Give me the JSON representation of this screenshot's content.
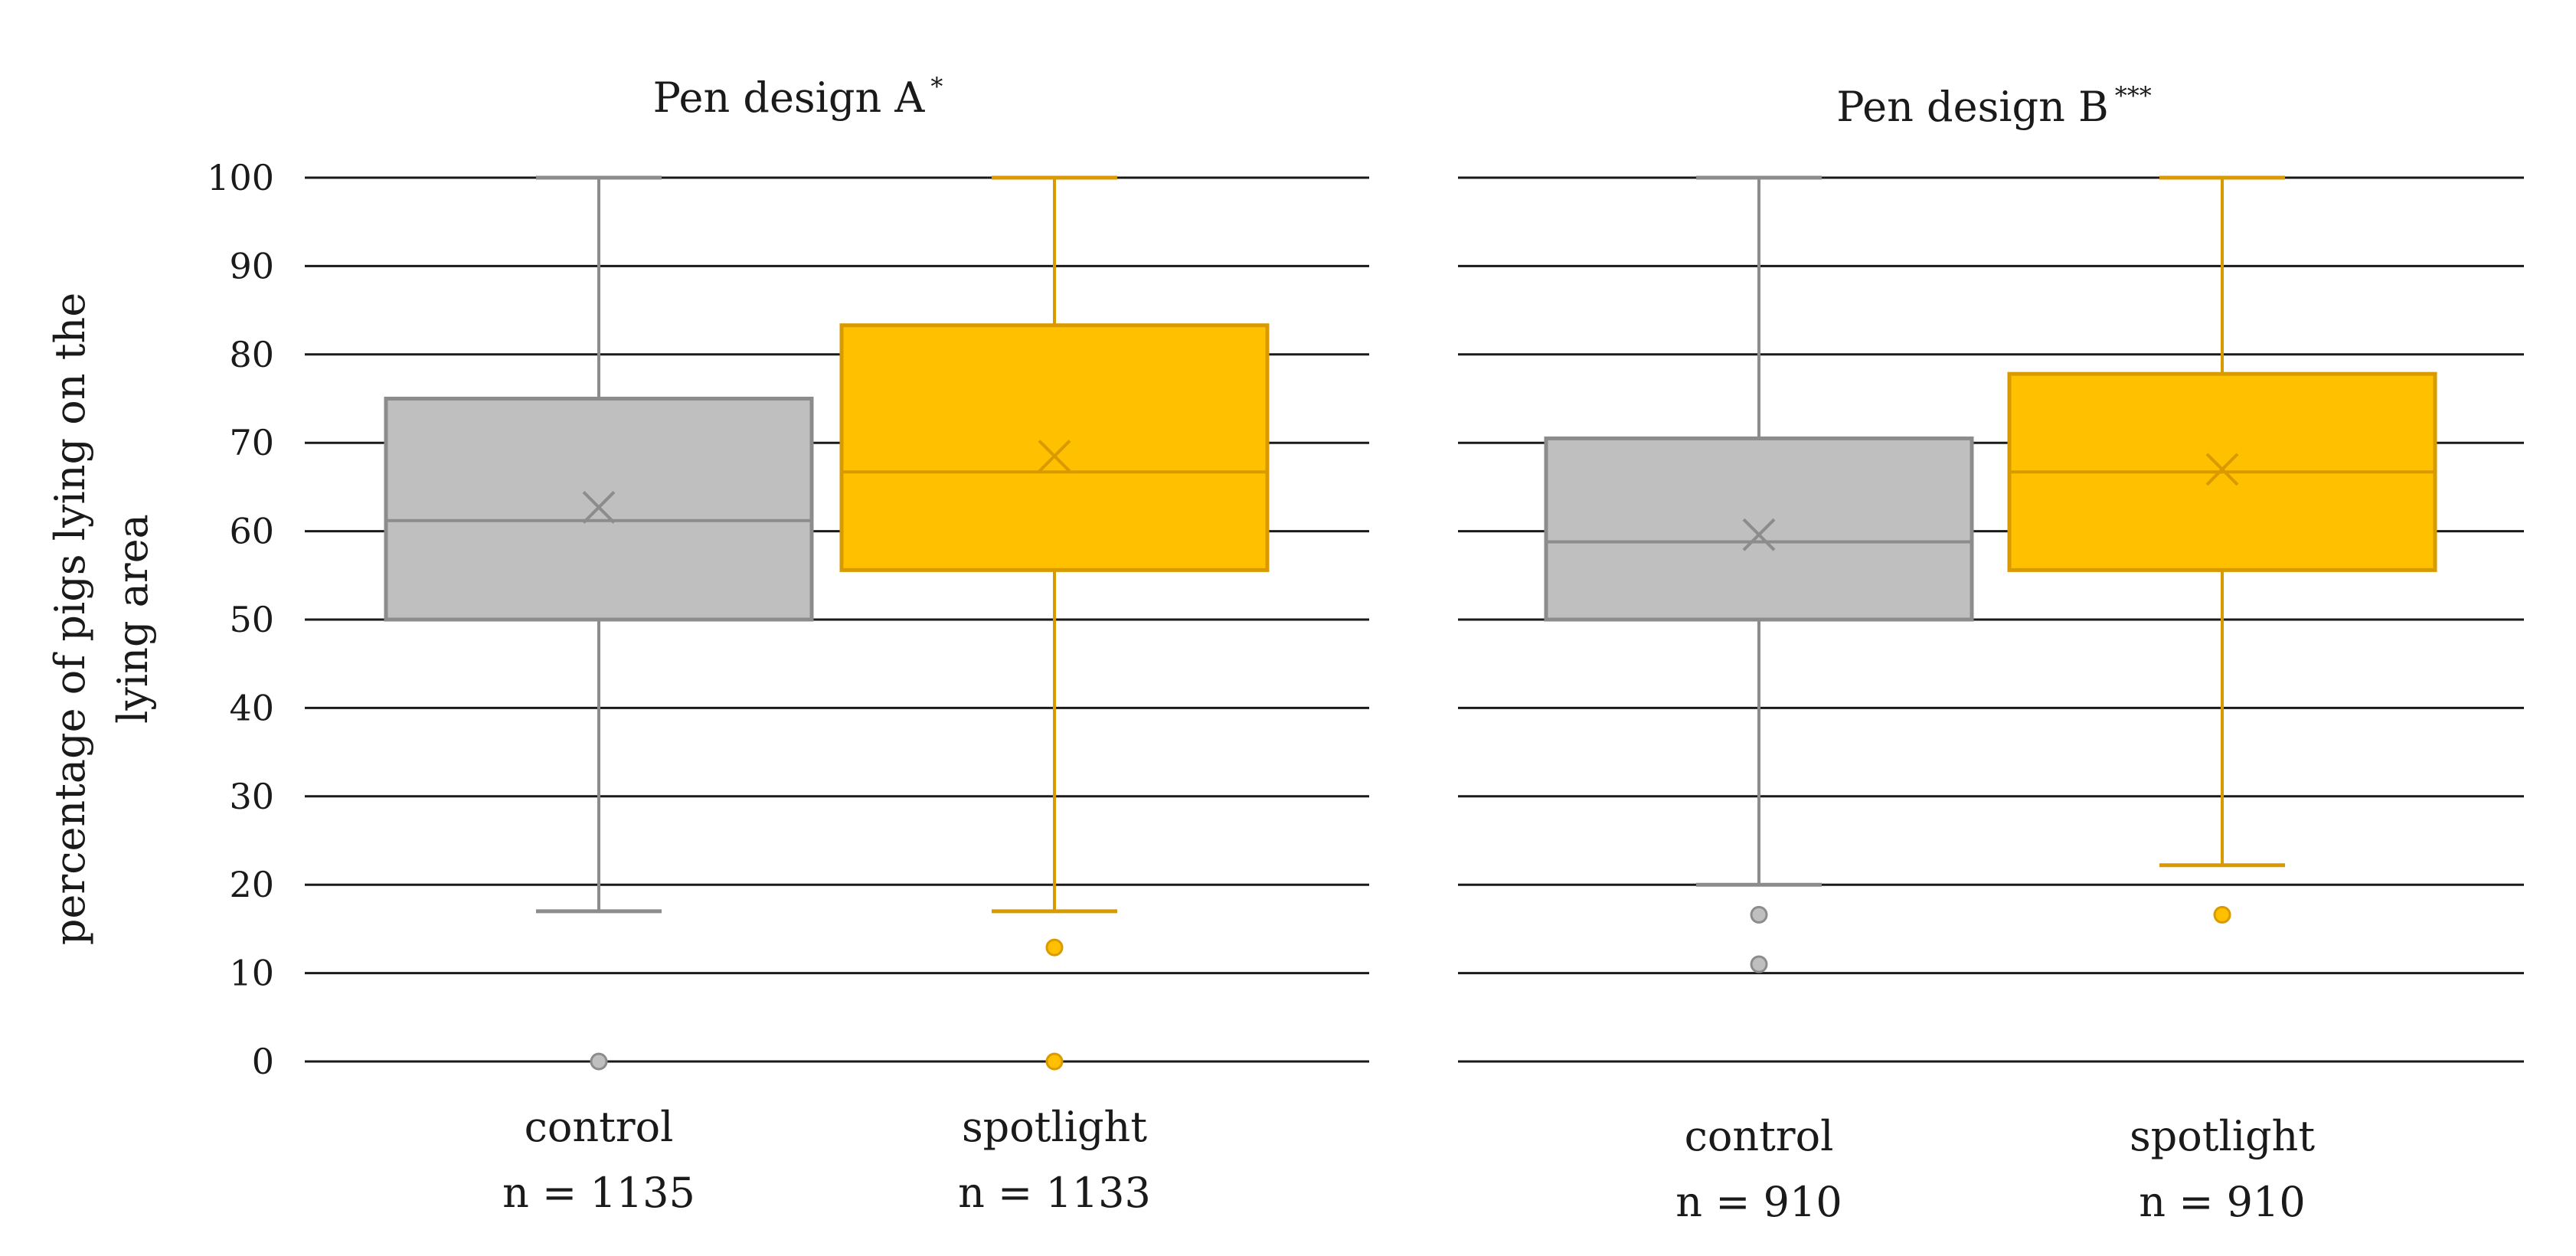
{
  "chart_data": {
    "type": "boxplot",
    "ylabel": [
      "percentage of pigs lying on the",
      "lying area"
    ],
    "ylim": [
      0,
      100
    ],
    "yticks": [
      "0",
      "10",
      "20",
      "30",
      "40",
      "50",
      "60",
      "70",
      "80",
      "90",
      "100"
    ],
    "grid": true,
    "colors": {
      "control_fill": "#bfbfbf",
      "control_stroke": "#8c8c8c",
      "spotlight_fill": "#ffc000",
      "spotlight_stroke": "#d99a00",
      "gridline": "#1a1a1a"
    },
    "panels": [
      {
        "title": "Pen design A",
        "significance": "*",
        "boxes": [
          {
            "category": "control",
            "n_label": "n = 1135",
            "color": "control",
            "min": 17,
            "q1": 50,
            "median": 61.2,
            "q3": 75,
            "max": 100,
            "mean": 62.7,
            "outliers": [
              0
            ]
          },
          {
            "category": "spotlight",
            "n_label": "n = 1133",
            "color": "spotlight",
            "min": 17,
            "q1": 55.6,
            "median": 66.7,
            "q3": 83.3,
            "max": 100,
            "mean": 68.5,
            "outliers": [
              12.9,
              0
            ]
          }
        ]
      },
      {
        "title": "Pen design B",
        "significance": "***",
        "boxes": [
          {
            "category": "control",
            "n_label": "n = 910",
            "color": "control",
            "min": 20,
            "q1": 50,
            "median": 58.8,
            "q3": 70.5,
            "max": 100,
            "mean": 59.6,
            "outliers": [
              16.6,
              11
            ]
          },
          {
            "category": "spotlight",
            "n_label": "n = 910",
            "color": "spotlight",
            "min": 22.2,
            "q1": 55.6,
            "median": 66.7,
            "q3": 77.8,
            "max": 100,
            "mean": 67,
            "outliers": [
              16.6
            ]
          }
        ]
      }
    ]
  }
}
